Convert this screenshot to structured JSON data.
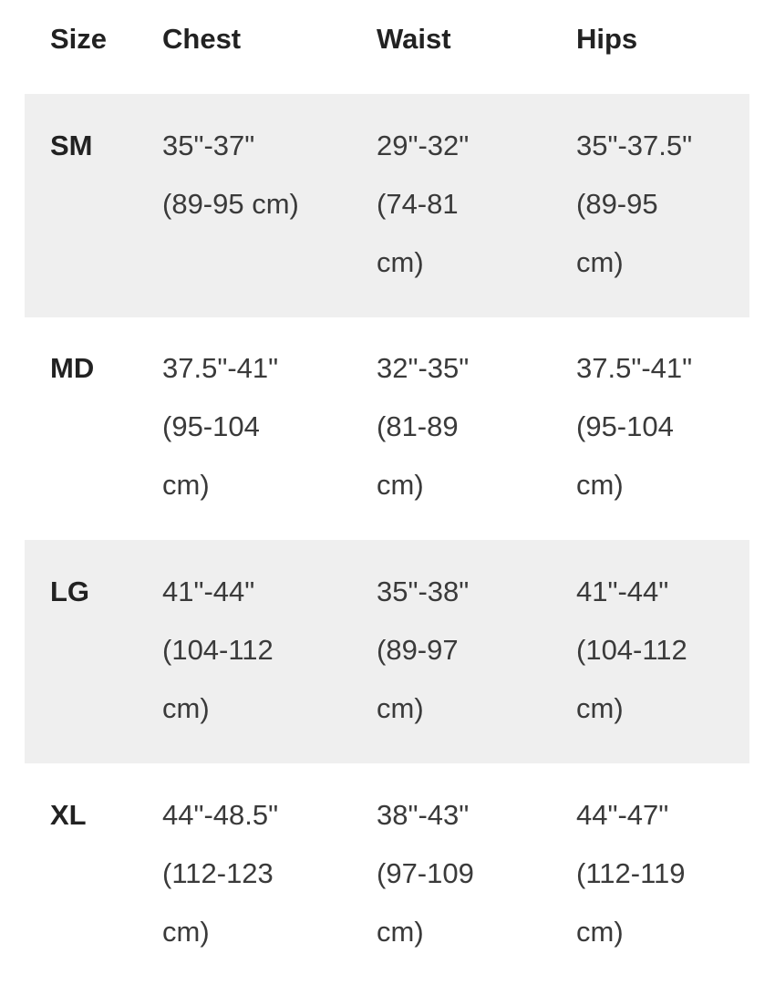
{
  "table": {
    "header": [
      "Size",
      "Chest",
      "Waist",
      "Hips"
    ],
    "rows": [
      {
        "size": "SM",
        "cells": [
          [
            "35\"-37\"",
            "(89-95 cm)"
          ],
          [
            "29\"-32\"",
            "(74-81",
            "cm)"
          ],
          [
            "35\"-37.5\"",
            "(89-95",
            "cm)"
          ]
        ]
      },
      {
        "size": "MD",
        "cells": [
          [
            "37.5\"-41\"",
            "(95-104",
            "cm)"
          ],
          [
            "32\"-35\"",
            "(81-89",
            "cm)"
          ],
          [
            "37.5\"-41\"",
            "(95-104",
            "cm)"
          ]
        ]
      },
      {
        "size": "LG",
        "cells": [
          [
            "41\"-44\"",
            "(104-112",
            "cm)"
          ],
          [
            "35\"-38\"",
            "(89-97",
            "cm)"
          ],
          [
            "41\"-44\"",
            "(104-112",
            "cm)"
          ]
        ]
      },
      {
        "size": "XL",
        "cells": [
          [
            "44\"-48.5\"",
            "(112-123",
            "cm)"
          ],
          [
            "38\"-43\"",
            "(97-109",
            "cm)"
          ],
          [
            "44\"-47\"",
            "(112-119",
            "cm)"
          ]
        ]
      }
    ]
  }
}
